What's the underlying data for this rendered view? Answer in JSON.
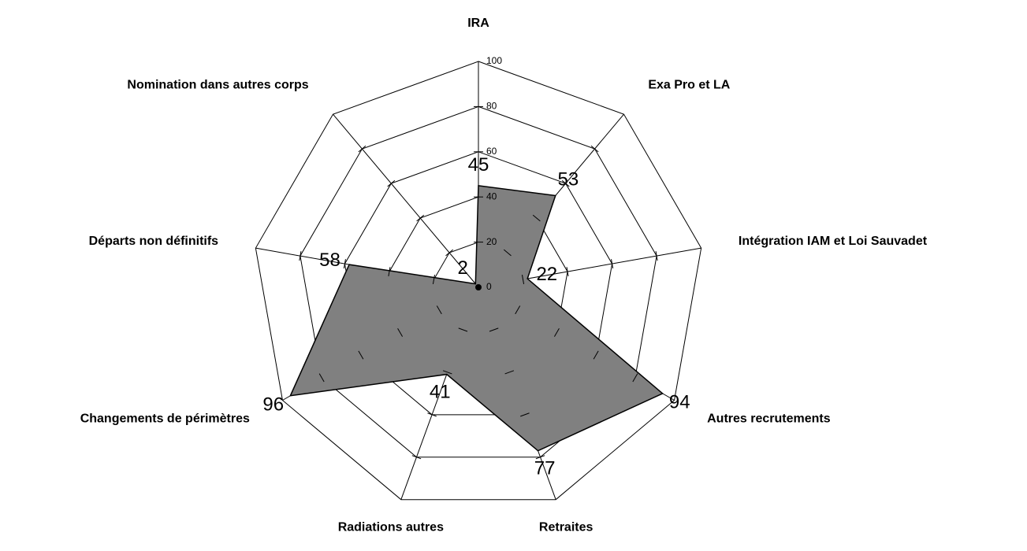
{
  "chart_data": {
    "type": "radar",
    "categories": [
      "IRA",
      "Exa Pro et LA",
      "Intégration IAM et Loi Sauvadet",
      "Autres recrutements",
      "Retraites",
      "Radiations autres",
      "Changements de périmètres",
      "Départs non définitifs",
      "Nomination dans autres corps"
    ],
    "values": [
      45,
      53,
      22,
      94,
      77,
      41,
      96,
      58,
      2
    ],
    "color": "#808080",
    "ylim": [
      0,
      100
    ],
    "yticks": [
      0,
      20,
      40,
      60,
      80,
      100
    ],
    "grid": true
  }
}
